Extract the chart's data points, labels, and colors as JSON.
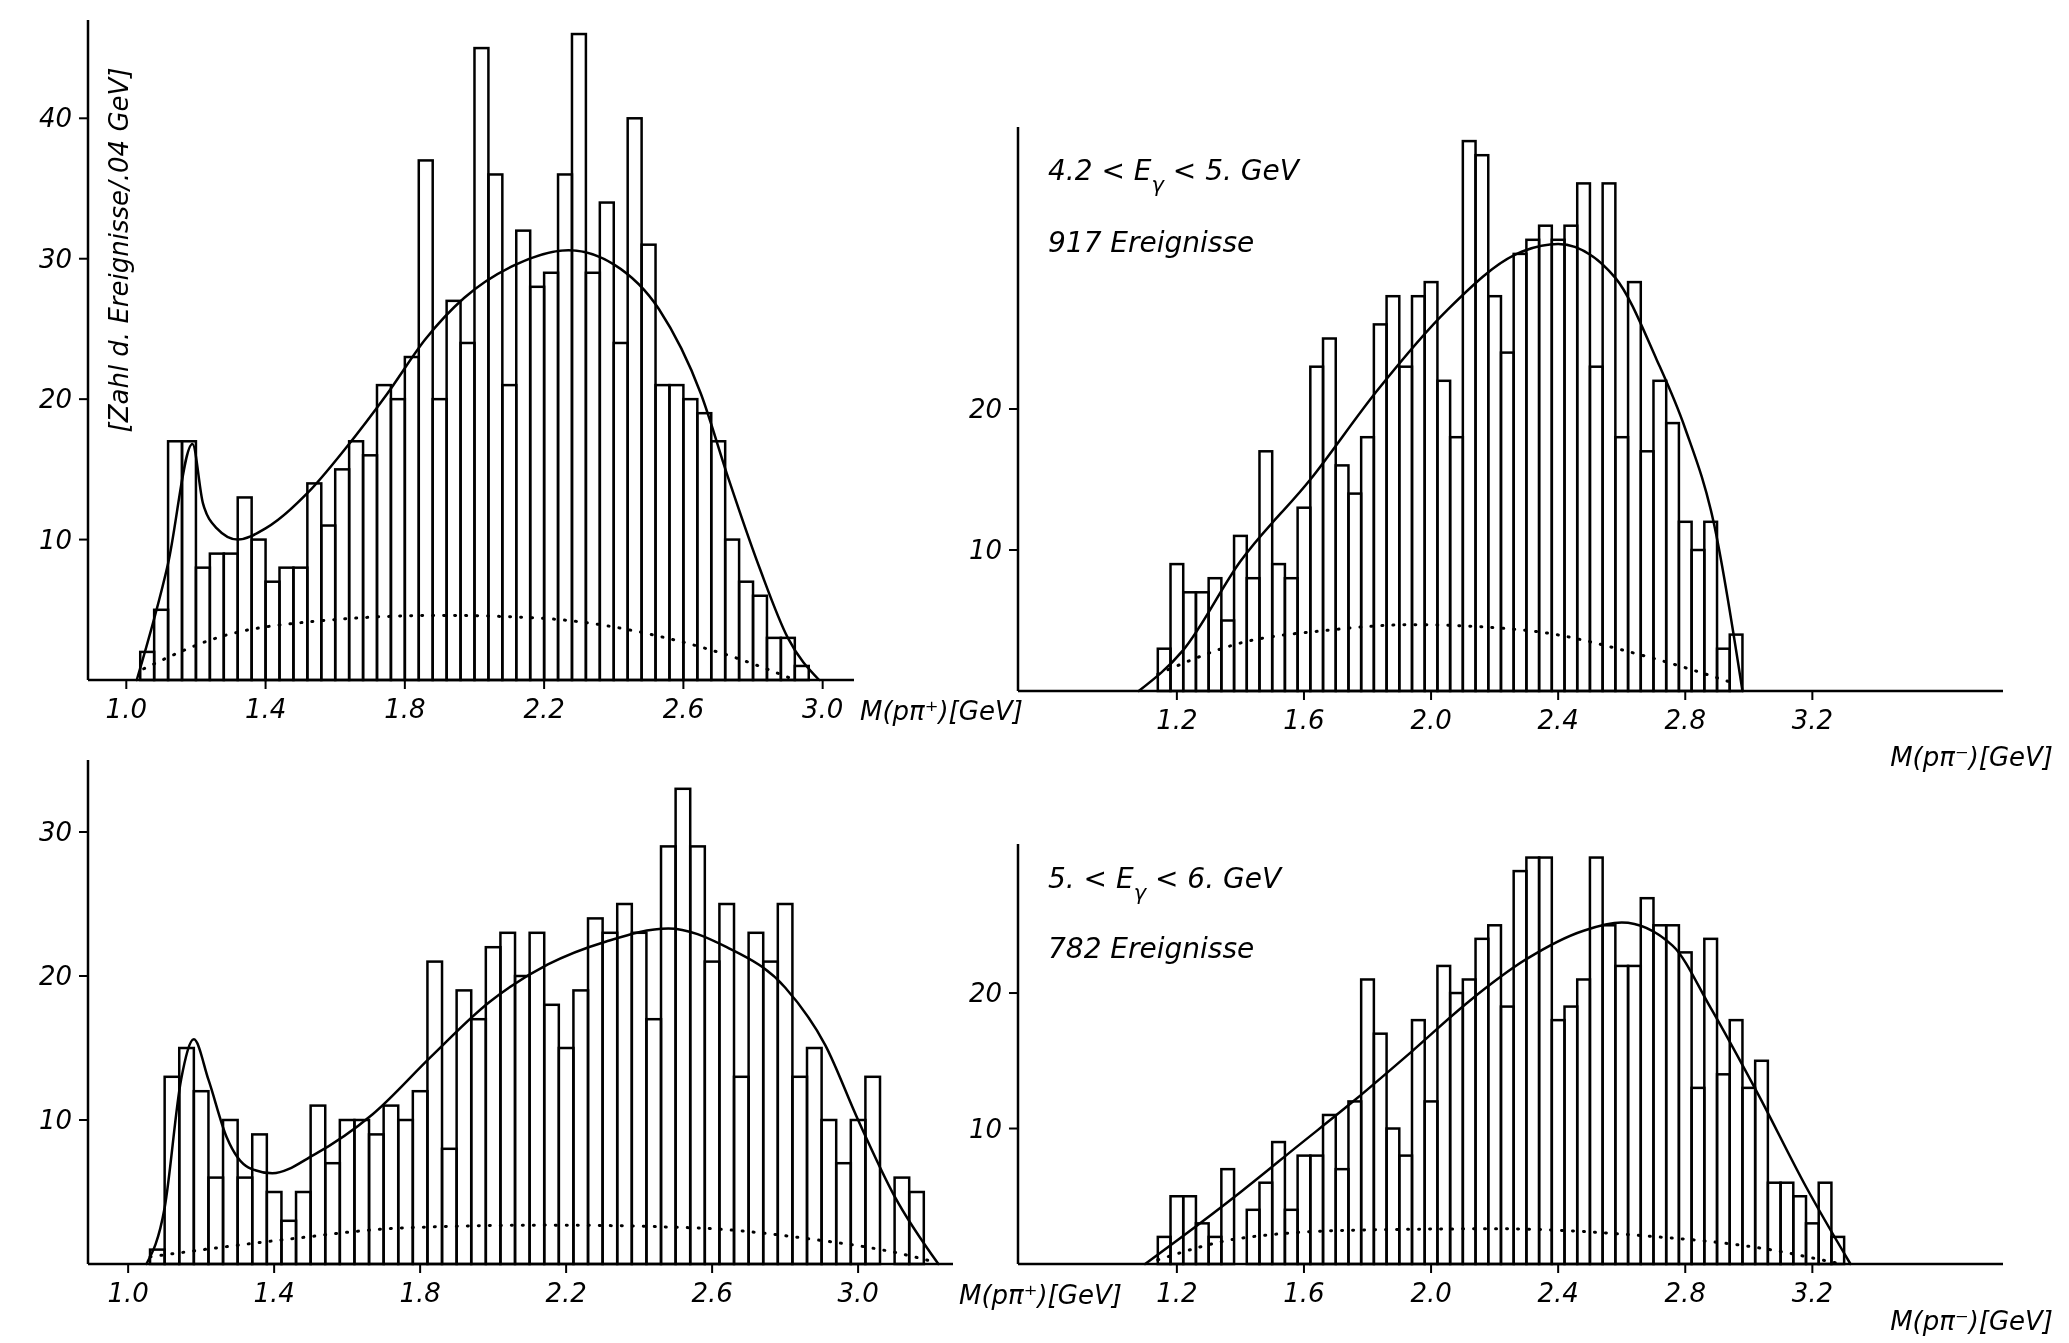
{
  "chart_data": [
    {
      "type": "histogram",
      "color": "#000000",
      "ylabel": "[Zahl d. Ereignisse/.04 GeV]",
      "xlabel": "M(pπ⁺)[GeV]",
      "bins": [
        1.04,
        1.08,
        1.12,
        1.16,
        1.2,
        1.24,
        1.28,
        1.32,
        1.36,
        1.4,
        1.44,
        1.48,
        1.52,
        1.56,
        1.6,
        1.64,
        1.68,
        1.72,
        1.76,
        1.8,
        1.84,
        1.88,
        1.92,
        1.96,
        2.0,
        2.04,
        2.08,
        2.12,
        2.16,
        2.2,
        2.24,
        2.28,
        2.32,
        2.36,
        2.4,
        2.44,
        2.48,
        2.52,
        2.56,
        2.6,
        2.64,
        2.68,
        2.72,
        2.76,
        2.8,
        2.84,
        2.88,
        2.92,
        2.96
      ],
      "values": [
        2,
        5,
        17,
        17,
        8,
        9,
        9,
        13,
        10,
        7,
        8,
        8,
        14,
        11,
        15,
        17,
        16,
        21,
        20,
        23,
        37,
        20,
        27,
        24,
        45,
        36,
        21,
        32,
        28,
        29,
        36,
        46,
        29,
        34,
        24,
        40,
        31,
        21,
        21,
        20,
        19,
        17,
        10,
        7,
        6,
        3,
        3,
        1
      ],
      "series": [
        {
          "type": "line",
          "line_style": "solid",
          "color": "#000000",
          "x": [
            1.03,
            1.12,
            1.19,
            1.22,
            1.26,
            1.32,
            1.4,
            1.52,
            1.63,
            1.75,
            1.86,
            1.97,
            2.12,
            2.27,
            2.4,
            2.53,
            2.65,
            2.73,
            2.82,
            2.9,
            2.99
          ],
          "values": [
            0,
            8.3,
            16.8,
            12.6,
            10.8,
            10,
            10.8,
            13.3,
            16.5,
            20.4,
            24.3,
            27.2,
            29.6,
            30.6,
            29.6,
            26.4,
            20.4,
            14.3,
            7.9,
            3,
            0
          ]
        },
        {
          "type": "line",
          "line_style": "dotted",
          "color": "#000000",
          "x": [
            1.05,
            1.26,
            1.55,
            1.9,
            2.19,
            2.55,
            2.76,
            2.92
          ],
          "values": [
            0.8,
            3,
            4.2,
            4.6,
            4.4,
            3,
            1.5,
            0
          ]
        }
      ],
      "xlim": [
        0.89,
        3.09
      ],
      "xticks": [
        {
          "value": 1,
          "label": "1.0"
        },
        1.4,
        1.8,
        2.2,
        2.6,
        {
          "value": 3,
          "label": "3.0"
        }
      ],
      "ylim": [
        0,
        47
      ],
      "yticks": [
        10,
        20,
        30,
        40
      ]
    },
    {
      "type": "histogram",
      "color": "#000000",
      "title": "4.2 < E$_{γ}$ < 5. GeV",
      "subtitle": "917 Ereignisse",
      "xlabel": "M(pπ⁻)[GeV]",
      "bins": [
        1.14,
        1.18,
        1.22,
        1.26,
        1.3,
        1.34,
        1.38,
        1.42,
        1.46,
        1.5,
        1.54,
        1.58,
        1.62,
        1.66,
        1.7,
        1.74,
        1.78,
        1.82,
        1.86,
        1.9,
        1.94,
        1.98,
        2.02,
        2.06,
        2.1,
        2.14,
        2.18,
        2.22,
        2.26,
        2.3,
        2.34,
        2.38,
        2.42,
        2.46,
        2.5,
        2.54,
        2.58,
        2.62,
        2.66,
        2.7,
        2.74,
        2.78,
        2.82,
        2.86,
        2.9,
        2.94,
        2.98
      ],
      "values": [
        3,
        9,
        7,
        7,
        8,
        5,
        11,
        8,
        17,
        9,
        8,
        13,
        23,
        25,
        16,
        14,
        18,
        26,
        28,
        23,
        28,
        29,
        22,
        18,
        39,
        38,
        28,
        24,
        31,
        32,
        33,
        32,
        33,
        36,
        23,
        36,
        18,
        29,
        17,
        22,
        19,
        12,
        10,
        12,
        3,
        4
      ],
      "series": [
        {
          "type": "line",
          "line_style": "solid",
          "color": "#000000",
          "x": [
            1.08,
            1.22,
            1.4,
            1.62,
            1.83,
            2.05,
            2.27,
            2.4,
            2.58,
            2.71,
            2.8,
            2.89,
            2.98
          ],
          "values": [
            0,
            2.9,
            9.2,
            15,
            21.3,
            27,
            31,
            31.7,
            29.3,
            23.5,
            18.6,
            11.9,
            0
          ]
        },
        {
          "type": "line",
          "line_style": "dotted",
          "color": "#000000",
          "x": [
            1.14,
            1.4,
            1.67,
            1.94,
            2.3,
            2.67,
            2.96
          ],
          "values": [
            1.2,
            3.4,
            4.3,
            4.7,
            4.3,
            2.5,
            0.5
          ]
        }
      ],
      "xlim": [
        0.7,
        3.8
      ],
      "xticks": [
        1.2,
        1.6,
        {
          "value": 2,
          "label": "2.0"
        },
        2.4,
        2.8,
        3.2
      ],
      "ylim": [
        0,
        40
      ],
      "yticks": [
        10,
        20
      ]
    },
    {
      "type": "histogram",
      "color": "#000000",
      "xlabel": "M(pπ⁺)[GeV]",
      "bins": [
        1.06,
        1.1,
        1.14,
        1.18,
        1.22,
        1.26,
        1.3,
        1.34,
        1.38,
        1.42,
        1.46,
        1.5,
        1.54,
        1.58,
        1.62,
        1.66,
        1.7,
        1.74,
        1.78,
        1.82,
        1.86,
        1.9,
        1.94,
        1.98,
        2.02,
        2.06,
        2.1,
        2.14,
        2.18,
        2.22,
        2.26,
        2.3,
        2.34,
        2.38,
        2.42,
        2.46,
        2.5,
        2.54,
        2.58,
        2.62,
        2.66,
        2.7,
        2.74,
        2.78,
        2.82,
        2.86,
        2.9,
        2.94,
        2.98,
        3.02,
        3.06,
        3.1,
        3.14,
        3.18
      ],
      "values": [
        1,
        13,
        15,
        12,
        6,
        10,
        6,
        9,
        5,
        3,
        5,
        11,
        7,
        10,
        10,
        9,
        11,
        10,
        12,
        21,
        8,
        19,
        17,
        22,
        23,
        20,
        23,
        18,
        15,
        19,
        24,
        23,
        25,
        23,
        17,
        29,
        33,
        29,
        21,
        25,
        13,
        23,
        21,
        25,
        13,
        15,
        10,
        7,
        10,
        13,
        0,
        6,
        5
      ],
      "series": [
        {
          "type": "line",
          "line_style": "solid",
          "color": "#000000",
          "x": [
            1.05,
            1.1,
            1.145,
            1.18,
            1.22,
            1.27,
            1.33,
            1.395,
            1.51,
            1.67,
            1.83,
            1.99,
            2.15,
            2.31,
            2.48,
            2.64,
            2.8,
            2.91,
            3.0,
            3.1,
            3.22
          ],
          "values": [
            0,
            3.9,
            12.8,
            15.6,
            12.8,
            8.8,
            6.7,
            6.3,
            7.6,
            10.4,
            14.4,
            18.2,
            20.8,
            22.4,
            23.3,
            22,
            19.2,
            15.2,
            10,
            4.7,
            0
          ]
        },
        {
          "type": "line",
          "line_style": "dotted",
          "color": "#000000",
          "x": [
            1.06,
            1.43,
            1.75,
            2.15,
            2.56,
            2.88,
            3.12,
            3.2
          ],
          "values": [
            0.5,
            1.7,
            2.5,
            2.7,
            2.5,
            1.7,
            0.7,
            0.2
          ]
        }
      ],
      "xlim": [
        0.89,
        3.26
      ],
      "xticks": [
        {
          "value": 1,
          "label": "1.0"
        },
        1.4,
        1.8,
        2.2,
        2.6,
        {
          "value": 3,
          "label": "3.0"
        }
      ],
      "ylim": [
        0,
        35
      ],
      "yticks": [
        10,
        20,
        30
      ]
    },
    {
      "type": "histogram",
      "color": "#000000",
      "title": "5. < E$_{γ}$ < 6. GeV",
      "subtitle": "782 Ereignisse",
      "xlabel": "M(pπ⁻)[GeV]",
      "bins": [
        1.14,
        1.18,
        1.22,
        1.26,
        1.3,
        1.34,
        1.38,
        1.42,
        1.46,
        1.5,
        1.54,
        1.58,
        1.62,
        1.66,
        1.7,
        1.74,
        1.78,
        1.82,
        1.86,
        1.9,
        1.94,
        1.98,
        2.02,
        2.06,
        2.1,
        2.14,
        2.18,
        2.22,
        2.26,
        2.3,
        2.34,
        2.38,
        2.42,
        2.46,
        2.5,
        2.54,
        2.58,
        2.62,
        2.66,
        2.7,
        2.74,
        2.78,
        2.82,
        2.86,
        2.9,
        2.94,
        2.98,
        3.02,
        3.06,
        3.1,
        3.14,
        3.18,
        3.22,
        3.26,
        3.3
      ],
      "values": [
        2,
        5,
        5,
        3,
        2,
        7,
        0,
        4,
        6,
        9,
        4,
        8,
        8,
        11,
        7,
        12,
        21,
        17,
        10,
        8,
        18,
        12,
        22,
        20,
        21,
        24,
        25,
        19,
        29,
        30,
        30,
        18,
        19,
        21,
        30,
        25,
        22,
        22,
        27,
        25,
        25,
        23,
        13,
        24,
        14,
        18,
        13,
        15,
        6,
        6,
        5,
        3,
        6,
        2
      ],
      "series": [
        {
          "type": "line",
          "line_style": "solid",
          "color": "#000000",
          "x": [
            1.1,
            1.21,
            1.4,
            1.58,
            1.76,
            1.94,
            2.12,
            2.3,
            2.48,
            2.6,
            2.76,
            2.88,
            3.03,
            3.18,
            3.32
          ],
          "values": [
            0,
            1.9,
            5.3,
            8.7,
            12.1,
            15.7,
            19.4,
            22.5,
            24.6,
            25.2,
            23.5,
            18.9,
            12.5,
            5.7,
            0
          ]
        },
        {
          "type": "line",
          "line_style": "dotted",
          "color": "#000000",
          "x": [
            1.14,
            1.4,
            1.76,
            2.21,
            2.66,
            3.03,
            3.29
          ],
          "values": [
            0.3,
            1.9,
            2.5,
            2.6,
            2.1,
            1.2,
            0
          ]
        }
      ],
      "xlim": [
        0.7,
        3.8
      ],
      "xticks": [
        1.2,
        1.6,
        {
          "value": 2,
          "label": "2.0"
        },
        2.4,
        2.8,
        3.2
      ],
      "ylim": [
        0,
        31
      ],
      "yticks": [
        10,
        20
      ]
    }
  ]
}
